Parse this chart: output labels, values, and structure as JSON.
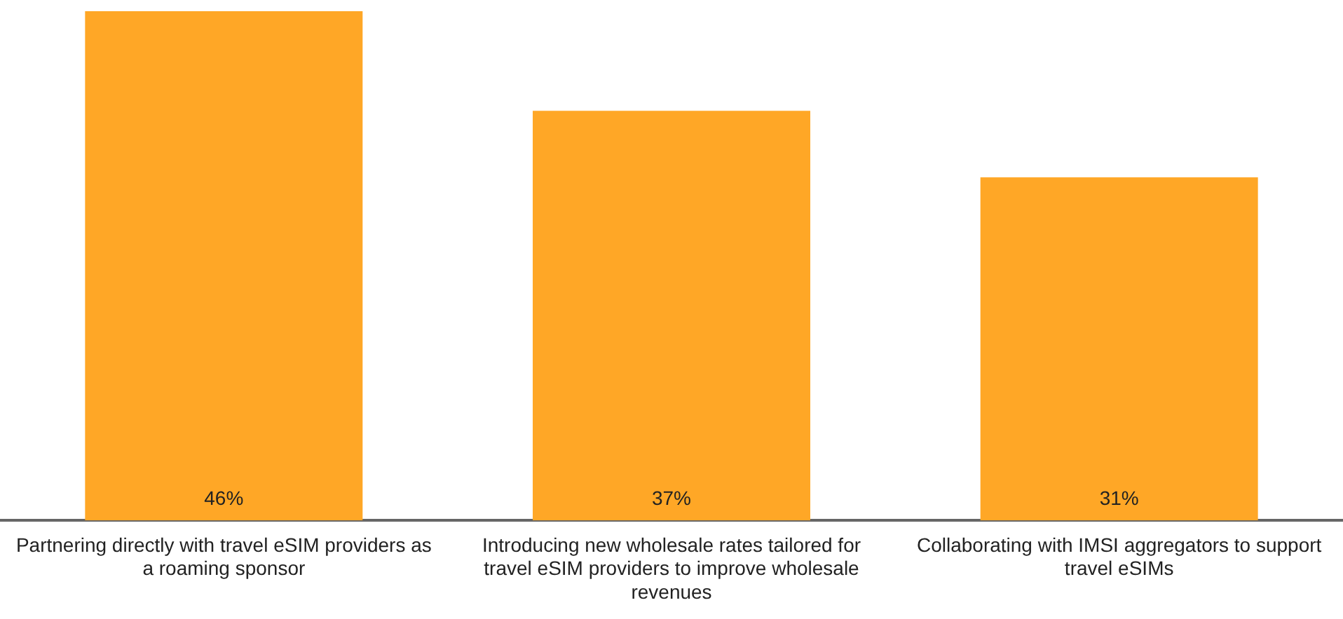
{
  "chart_data": {
    "type": "bar",
    "categories": [
      "Partnering directly with travel eSIM providers as a roaming sponsor",
      "Introducing new wholesale rates tailored for travel eSIM providers to improve wholesale revenues",
      "Collaborating with IMSI aggregators to support travel eSIMs"
    ],
    "values": [
      46,
      37,
      31
    ],
    "color": "#ffa726",
    "value_labels": [
      "46%",
      "37%",
      "31%"
    ],
    "grid": false,
    "legend": false
  }
}
